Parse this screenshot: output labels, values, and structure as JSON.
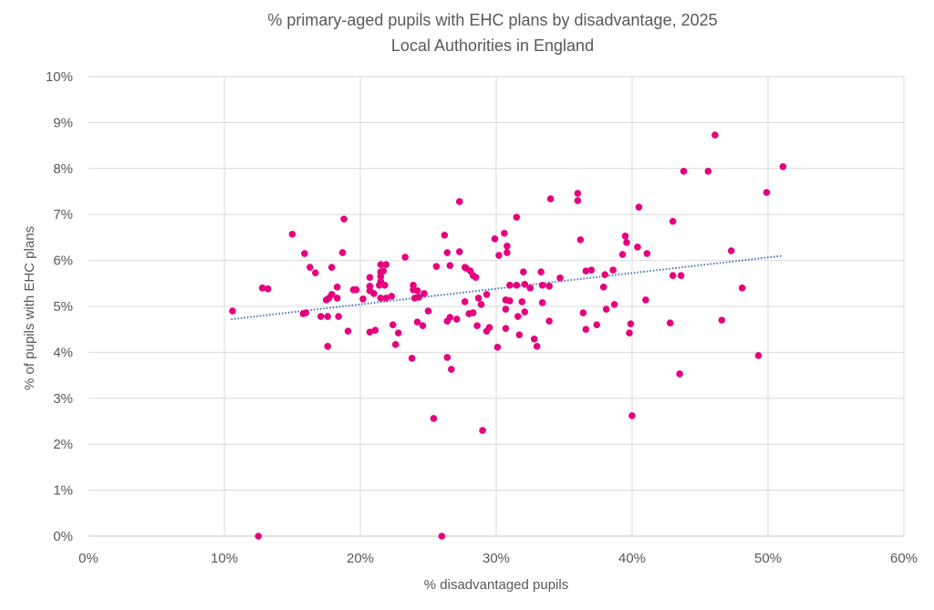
{
  "chart_data": {
    "type": "scatter",
    "title": "% primary-aged pupils with EHC plans by disadvantage, 2025",
    "subtitle": "Local Authorities in England",
    "xlabel": "% disadvantaged pupils",
    "ylabel": "% of pupils with EHC plans",
    "xlim": [
      0,
      60
    ],
    "ylim": [
      0,
      10
    ],
    "x_ticks": [
      "0%",
      "10%",
      "20%",
      "30%",
      "40%",
      "50%",
      "60%"
    ],
    "y_ticks": [
      "0%",
      "1%",
      "2%",
      "3%",
      "4%",
      "5%",
      "6%",
      "7%",
      "8%",
      "9%",
      "10%"
    ],
    "grid": true,
    "colors": {
      "points": "#E6007E",
      "trendline": "#4472C4",
      "grid": "#D9D9D9"
    },
    "trendline": {
      "type": "linear",
      "from": [
        10.5,
        4.72
      ],
      "to": [
        51.0,
        6.1
      ]
    },
    "points": [
      [
        10.6,
        4.9
      ],
      [
        12.5,
        0.0
      ],
      [
        12.8,
        5.4
      ],
      [
        13.2,
        5.38
      ],
      [
        15.0,
        6.57
      ],
      [
        15.9,
        6.15
      ],
      [
        16.3,
        5.85
      ],
      [
        16.7,
        5.73
      ],
      [
        15.8,
        4.84
      ],
      [
        16.0,
        4.86
      ],
      [
        17.1,
        4.78
      ],
      [
        17.6,
        4.78
      ],
      [
        17.6,
        4.13
      ],
      [
        17.5,
        5.14
      ],
      [
        17.7,
        5.18
      ],
      [
        17.9,
        5.26
      ],
      [
        17.9,
        5.85
      ],
      [
        18.3,
        5.42
      ],
      [
        18.3,
        5.18
      ],
      [
        18.4,
        4.78
      ],
      [
        18.7,
        6.17
      ],
      [
        18.8,
        6.9
      ],
      [
        19.1,
        4.46
      ],
      [
        19.5,
        5.36
      ],
      [
        19.7,
        5.36
      ],
      [
        20.2,
        5.16
      ],
      [
        20.7,
        5.63
      ],
      [
        20.7,
        5.44
      ],
      [
        20.7,
        5.34
      ],
      [
        21.0,
        5.28
      ],
      [
        20.7,
        4.44
      ],
      [
        21.1,
        4.48
      ],
      [
        21.5,
        5.91
      ],
      [
        21.9,
        5.91
      ],
      [
        21.7,
        5.77
      ],
      [
        21.5,
        5.75
      ],
      [
        21.5,
        5.65
      ],
      [
        21.5,
        5.54
      ],
      [
        21.4,
        5.46
      ],
      [
        21.8,
        5.46
      ],
      [
        21.5,
        5.18
      ],
      [
        21.9,
        5.18
      ],
      [
        22.3,
        5.22
      ],
      [
        22.4,
        4.6
      ],
      [
        22.8,
        4.42
      ],
      [
        22.6,
        4.17
      ],
      [
        23.3,
        6.07
      ],
      [
        23.8,
        3.87
      ],
      [
        23.9,
        5.46
      ],
      [
        23.9,
        5.36
      ],
      [
        24.2,
        5.34
      ],
      [
        24.0,
        5.18
      ],
      [
        24.3,
        5.2
      ],
      [
        24.7,
        5.28
      ],
      [
        24.2,
        4.66
      ],
      [
        24.6,
        4.58
      ],
      [
        25.0,
        4.9
      ],
      [
        25.4,
        2.56
      ],
      [
        25.6,
        5.87
      ],
      [
        26.0,
        0.0
      ],
      [
        26.2,
        6.55
      ],
      [
        26.4,
        6.17
      ],
      [
        26.6,
        5.89
      ],
      [
        27.3,
        6.19
      ],
      [
        27.3,
        7.28
      ],
      [
        26.4,
        3.89
      ],
      [
        26.7,
        3.63
      ],
      [
        26.4,
        4.68
      ],
      [
        26.6,
        4.76
      ],
      [
        27.1,
        4.72
      ],
      [
        27.7,
        5.1
      ],
      [
        27.7,
        5.85
      ],
      [
        27.8,
        5.83
      ],
      [
        28.1,
        5.77
      ],
      [
        28.3,
        5.67
      ],
      [
        28.5,
        5.63
      ],
      [
        28.0,
        4.84
      ],
      [
        28.3,
        4.86
      ],
      [
        28.7,
        5.18
      ],
      [
        28.9,
        5.04
      ],
      [
        28.6,
        4.58
      ],
      [
        29.0,
        2.3
      ],
      [
        29.3,
        4.46
      ],
      [
        29.5,
        4.54
      ],
      [
        29.3,
        5.26
      ],
      [
        29.9,
        6.47
      ],
      [
        30.6,
        6.59
      ],
      [
        30.8,
        6.31
      ],
      [
        30.8,
        6.17
      ],
      [
        30.2,
        6.11
      ],
      [
        30.1,
        4.11
      ],
      [
        30.7,
        5.14
      ],
      [
        31.0,
        5.12
      ],
      [
        30.7,
        4.94
      ],
      [
        30.7,
        4.52
      ],
      [
        31.0,
        5.46
      ],
      [
        31.5,
        5.46
      ],
      [
        31.5,
        6.94
      ],
      [
        31.6,
        4.78
      ],
      [
        31.7,
        4.38
      ],
      [
        31.9,
        5.1
      ],
      [
        32.0,
        5.75
      ],
      [
        32.1,
        5.48
      ],
      [
        32.1,
        4.88
      ],
      [
        32.5,
        5.4
      ],
      [
        32.8,
        4.29
      ],
      [
        33.0,
        4.13
      ],
      [
        33.3,
        5.75
      ],
      [
        33.4,
        5.46
      ],
      [
        33.4,
        5.08
      ],
      [
        33.9,
        5.44
      ],
      [
        33.9,
        4.68
      ],
      [
        34.0,
        7.34
      ],
      [
        34.7,
        5.62
      ],
      [
        36.0,
        7.46
      ],
      [
        36.0,
        7.3
      ],
      [
        36.2,
        6.45
      ],
      [
        36.4,
        4.86
      ],
      [
        36.6,
        5.77
      ],
      [
        36.6,
        4.5
      ],
      [
        37.0,
        5.79
      ],
      [
        37.4,
        4.6
      ],
      [
        37.9,
        5.42
      ],
      [
        38.0,
        5.69
      ],
      [
        38.1,
        4.94
      ],
      [
        38.6,
        5.79
      ],
      [
        38.7,
        5.04
      ],
      [
        39.3,
        6.13
      ],
      [
        39.5,
        6.53
      ],
      [
        39.6,
        6.39
      ],
      [
        39.9,
        4.62
      ],
      [
        39.8,
        4.42
      ],
      [
        40.0,
        2.62
      ],
      [
        40.4,
        6.29
      ],
      [
        40.5,
        7.16
      ],
      [
        41.0,
        5.14
      ],
      [
        41.1,
        6.15
      ],
      [
        42.8,
        4.64
      ],
      [
        43.0,
        6.85
      ],
      [
        43.0,
        5.67
      ],
      [
        43.5,
        3.53
      ],
      [
        43.6,
        5.67
      ],
      [
        43.8,
        7.94
      ],
      [
        45.6,
        7.94
      ],
      [
        46.1,
        8.73
      ],
      [
        46.6,
        4.7
      ],
      [
        47.3,
        6.21
      ],
      [
        48.1,
        5.4
      ],
      [
        49.3,
        3.93
      ],
      [
        49.9,
        7.48
      ],
      [
        51.1,
        8.04
      ]
    ]
  }
}
